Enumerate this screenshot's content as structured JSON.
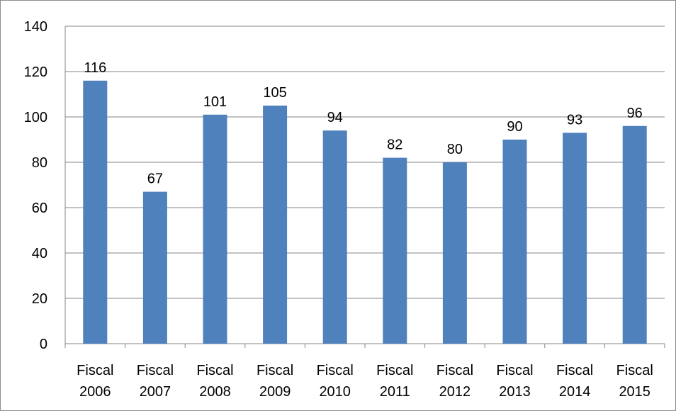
{
  "chart_data": {
    "type": "bar",
    "categories": [
      [
        "Fiscal",
        "2006"
      ],
      [
        "Fiscal",
        "2007"
      ],
      [
        "Fiscal",
        "2008"
      ],
      [
        "Fiscal",
        "2009"
      ],
      [
        "Fiscal",
        "2010"
      ],
      [
        "Fiscal",
        "2011"
      ],
      [
        "Fiscal",
        "2012"
      ],
      [
        "Fiscal",
        "2013"
      ],
      [
        "Fiscal",
        "2014"
      ],
      [
        "Fiscal",
        "2015"
      ]
    ],
    "values": [
      116,
      67,
      101,
      105,
      94,
      82,
      80,
      90,
      93,
      96
    ],
    "data_labels": [
      "116",
      "67",
      "101",
      "105",
      "94",
      "82",
      "80",
      "90",
      "93",
      "96"
    ],
    "ylim": [
      0,
      140
    ],
    "y_ticks": [
      "0",
      "20",
      "40",
      "60",
      "80",
      "100",
      "120",
      "140"
    ],
    "gridlines": true,
    "legend": "none",
    "bar_color": "#4F81BD",
    "grid_color": "#868686"
  }
}
